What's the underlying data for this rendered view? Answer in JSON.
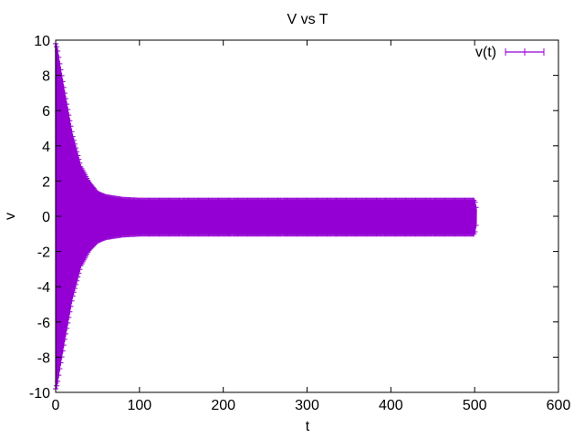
{
  "chart_data": {
    "type": "line",
    "title": "V vs T",
    "xlabel": "t",
    "ylabel": "v",
    "xlim": [
      0,
      600
    ],
    "ylim": [
      -10,
      10
    ],
    "x_ticks": [
      0,
      100,
      200,
      300,
      400,
      500,
      600
    ],
    "y_ticks": [
      -10,
      -8,
      -6,
      -4,
      -2,
      0,
      2,
      4,
      6,
      8,
      10
    ],
    "x_tick_labels": [
      "0",
      "100",
      "200",
      "300",
      "400",
      "500",
      "600"
    ],
    "y_tick_labels": [
      "-10",
      "-8",
      "-6",
      "-4",
      "-2",
      "0",
      "2",
      "4",
      "6",
      "8",
      "10"
    ],
    "grid": false,
    "legend_position": "top-right",
    "series": [
      {
        "name": "v(t)",
        "color": "#9400d3",
        "style": "lines with point markers",
        "description_envelope": {
          "t": [
            0,
            2,
            5,
            10,
            15,
            20,
            30,
            40,
            50,
            60,
            80,
            100,
            200,
            300,
            400,
            500,
            502
          ],
          "upper": [
            9.8,
            9.5,
            8.6,
            7.2,
            5.9,
            4.6,
            2.8,
            1.9,
            1.3,
            1.1,
            0.95,
            0.9,
            0.9,
            0.9,
            0.9,
            0.9,
            0.4
          ],
          "lower": [
            -9.8,
            -9.5,
            -8.6,
            -7.2,
            -5.9,
            -4.6,
            -2.8,
            -1.9,
            -1.4,
            -1.2,
            -1.05,
            -1.0,
            -1.0,
            -1.0,
            -1.0,
            -1.0,
            -0.4
          ]
        }
      }
    ]
  }
}
